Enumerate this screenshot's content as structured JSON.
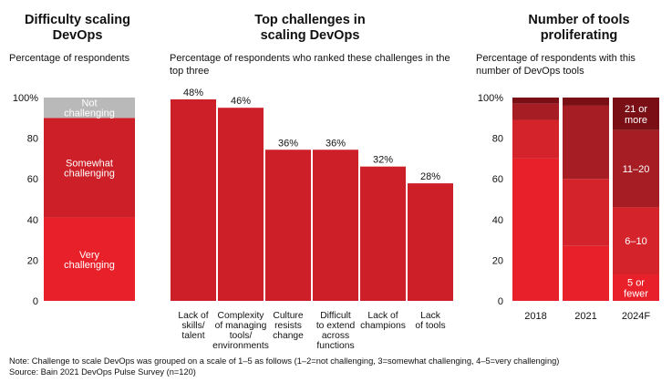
{
  "panels": [
    {
      "title": "Difficulty scaling DevOps",
      "subtitle": "Percentage of respondents"
    },
    {
      "title": "Top challenges in scaling DevOps",
      "subtitle": "Percentage of respondents who ranked these challenges in the top three"
    },
    {
      "title": "Number of tools proliferating",
      "subtitle": "Percentage of respondents with this number of DevOps tools"
    }
  ],
  "footer": {
    "note": "Note: Challenge to scale DevOps was grouped on a scale of 1–5 as follows (1–2=not challenging, 3=somewhat challenging, 4–5=very challenging)",
    "source": "Source: Bain 2021 DevOps Pulse Survey (n=120)"
  },
  "chart_data": [
    {
      "type": "bar",
      "stacked": true,
      "title": "Difficulty scaling DevOps",
      "ylabel": "Percentage of respondents",
      "ylim": [
        0,
        100
      ],
      "yticks": [
        "0",
        "20",
        "40",
        "60",
        "80",
        "100%"
      ],
      "segments": [
        {
          "name": "Very challenging",
          "label_lines": [
            "Very",
            "challenging"
          ],
          "value": 41,
          "color": "#e8202a"
        },
        {
          "name": "Somewhat challenging",
          "label_lines": [
            "Somewhat",
            "challenging"
          ],
          "value": 49,
          "color": "#cc1f27"
        },
        {
          "name": "Not challenging",
          "label_lines": [
            "Not",
            "challenging"
          ],
          "value": 10,
          "color": "#b9b9b9"
        }
      ]
    },
    {
      "type": "bar",
      "title": "Top challenges in scaling DevOps",
      "ylabel": "Percentage of respondents who ranked these challenges in the top three",
      "ylim": [
        0,
        100
      ],
      "color": "#cc1f27",
      "categories": [
        {
          "name": "Lack of skills/ talent",
          "lines": [
            "Lack of",
            "skills/",
            "talent"
          ]
        },
        {
          "name": "Complexity of managing tools/ environments",
          "lines": [
            "Complexity",
            "of managing",
            "tools/",
            "environments"
          ]
        },
        {
          "name": "Culture resists change",
          "lines": [
            "Culture",
            "resists",
            "change"
          ]
        },
        {
          "name": "Difficult to extend across functions",
          "lines": [
            "Difficult",
            "to extend",
            "across",
            "functions"
          ]
        },
        {
          "name": "Lack of champions",
          "lines": [
            "Lack of",
            "champions"
          ]
        },
        {
          "name": "Lack of tools",
          "lines": [
            "Lack",
            "of tools"
          ]
        }
      ],
      "values": [
        48,
        46,
        36,
        36,
        32,
        28
      ],
      "value_labels": [
        "48%",
        "46%",
        "36%",
        "36%",
        "32%",
        "28%"
      ]
    },
    {
      "type": "bar",
      "stacked": true,
      "title": "Number of tools proliferating",
      "ylabel": "Percentage of respondents with this number of DevOps tools",
      "ylim": [
        0,
        100
      ],
      "yticks": [
        "0",
        "20",
        "40",
        "60",
        "80",
        "100%"
      ],
      "categories": [
        "2018",
        "2021",
        "2024F"
      ],
      "series": [
        {
          "name": "5 or fewer",
          "label_lines": [
            "5 or",
            "fewer"
          ],
          "color": "#e8202a",
          "values": [
            70,
            27,
            13
          ]
        },
        {
          "name": "6–10",
          "label_lines": [
            "6–10"
          ],
          "color": "#d4232b",
          "values": [
            19,
            33,
            33
          ]
        },
        {
          "name": "11–20",
          "label_lines": [
            "11–20"
          ],
          "color": "#a61d23",
          "values": [
            8,
            36,
            38
          ]
        },
        {
          "name": "21 or more",
          "label_lines": [
            "21 or",
            "more"
          ],
          "color": "#7a0f16",
          "values": [
            3,
            4,
            16
          ]
        }
      ]
    }
  ]
}
